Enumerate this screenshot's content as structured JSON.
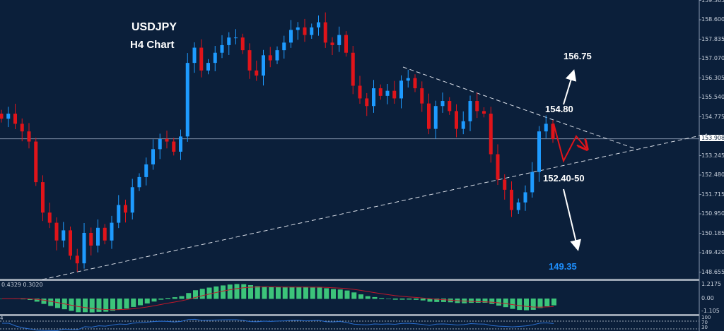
{
  "chart_data": {
    "type": "candlestick",
    "title": "USDJPY",
    "subtitle": "H4 Chart",
    "ylim": [
      148.3,
      159.4
    ],
    "y_ticks": [
      "159.365",
      "158.600",
      "157.835",
      "157.070",
      "156.305",
      "155.540",
      "154.775",
      "153.245",
      "152.480",
      "151.715",
      "150.950",
      "150.185",
      "149.420",
      "148.655"
    ],
    "current_price": "153.908",
    "closes": [
      154.7,
      154.9,
      154.5,
      154.2,
      153.8,
      152.2,
      151.0,
      150.6,
      149.9,
      150.3,
      149.3,
      149.0,
      150.2,
      149.7,
      150.4,
      149.9,
      150.6,
      151.3,
      151.0,
      152.0,
      152.4,
      152.9,
      153.5,
      153.9,
      153.8,
      153.4,
      154.0,
      156.9,
      157.5,
      156.6,
      156.9,
      157.3,
      157.6,
      157.9,
      157.9,
      157.4,
      156.6,
      156.4,
      157.2,
      157.0,
      157.4,
      157.7,
      158.2,
      158.3,
      158.0,
      158.3,
      158.5,
      157.7,
      157.6,
      158.0,
      157.3,
      156.0,
      155.5,
      155.2,
      155.9,
      155.6,
      155.8,
      155.5,
      156.2,
      156.3,
      155.9,
      155.3,
      154.3,
      155.2,
      155.4,
      155.0,
      154.3,
      154.6,
      155.4,
      155.0,
      154.9,
      153.3,
      152.3,
      151.9,
      151.1,
      151.4,
      151.8,
      152.6,
      154.2,
      154.5,
      153.9
    ],
    "annotations": {
      "target_up": "156.75",
      "resistance": "154.80",
      "support": "152.40-50",
      "target_down": "149.35"
    },
    "colors": {
      "bull": "#1e9bff",
      "bear": "#e0141a",
      "background": "#0b1f3a",
      "target_down": "#1e90ff",
      "histogram": "#3cc47a",
      "signal": "#c0182a",
      "rsi": "#2a6fd0"
    },
    "macd": {
      "label": "0.4329 0.3020",
      "ticks": [
        "1.2175",
        "0.00",
        "-1.105"
      ]
    },
    "rsi": {
      "label": "4",
      "ticks": [
        "100",
        "70",
        "30"
      ]
    }
  }
}
